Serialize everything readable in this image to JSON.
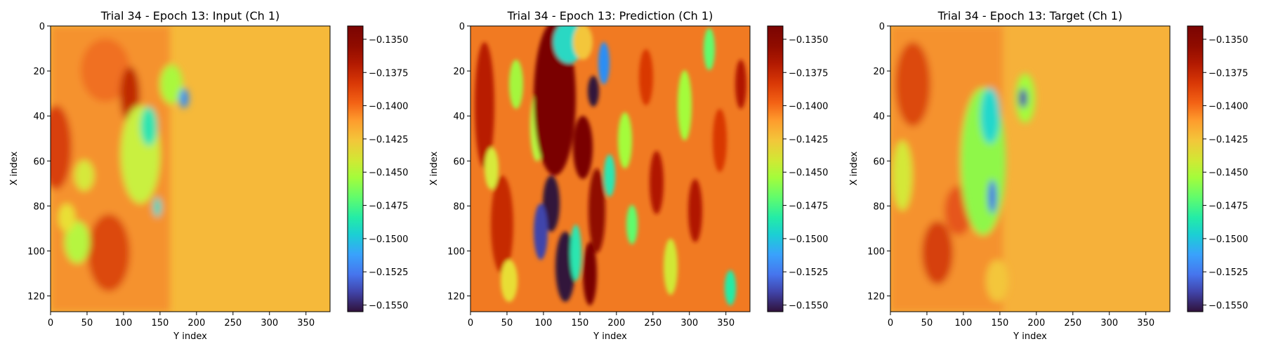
{
  "chart_data": [
    {
      "type": "heatmap",
      "title": "Trial 34 - Epoch 13: Input (Ch 1)",
      "xlabel": "Y index",
      "ylabel": "X index",
      "xlim": [
        0,
        383
      ],
      "ylim": [
        127,
        0
      ],
      "xticks": [
        "0",
        "50",
        "100",
        "150",
        "200",
        "250",
        "300",
        "350"
      ],
      "yticks": [
        "0",
        "20",
        "40",
        "60",
        "80",
        "100",
        "120"
      ],
      "colormap": "turbo",
      "colorbar": {
        "vmin": -0.1555,
        "vmax": -0.134,
        "ticks": [
          "−0.1350",
          "−0.1375",
          "−0.1400",
          "−0.1425",
          "−0.1450",
          "−0.1475",
          "−0.1500",
          "−0.1525",
          "−0.1550"
        ]
      },
      "field": "input"
    },
    {
      "type": "heatmap",
      "title": "Trial 34 - Epoch 13: Prediction (Ch 1)",
      "xlabel": "Y index",
      "ylabel": "X index",
      "xlim": [
        0,
        383
      ],
      "ylim": [
        127,
        0
      ],
      "xticks": [
        "0",
        "50",
        "100",
        "150",
        "200",
        "250",
        "300",
        "350"
      ],
      "yticks": [
        "0",
        "20",
        "40",
        "60",
        "80",
        "100",
        "120"
      ],
      "colormap": "turbo",
      "colorbar": {
        "vmin": -0.1555,
        "vmax": -0.134,
        "ticks": [
          "−0.1350",
          "−0.1375",
          "−0.1400",
          "−0.1425",
          "−0.1450",
          "−0.1475",
          "−0.1500",
          "−0.1525",
          "−0.1550"
        ]
      },
      "field": "prediction"
    },
    {
      "type": "heatmap",
      "title": "Trial 34 - Epoch 13: Target (Ch 1)",
      "xlabel": "Y index",
      "ylabel": "X index",
      "xlim": [
        0,
        383
      ],
      "ylim": [
        127,
        0
      ],
      "xticks": [
        "0",
        "50",
        "100",
        "150",
        "200",
        "250",
        "300",
        "350"
      ],
      "yticks": [
        "0",
        "20",
        "40",
        "60",
        "80",
        "100",
        "120"
      ],
      "colormap": "turbo",
      "colorbar": {
        "vmin": -0.1555,
        "vmax": -0.134,
        "ticks": [
          "−0.1350",
          "−0.1375",
          "−0.1400",
          "−0.1425",
          "−0.1450",
          "−0.1475",
          "−0.1500",
          "−0.1525",
          "−0.1550"
        ]
      },
      "field": "target"
    }
  ]
}
